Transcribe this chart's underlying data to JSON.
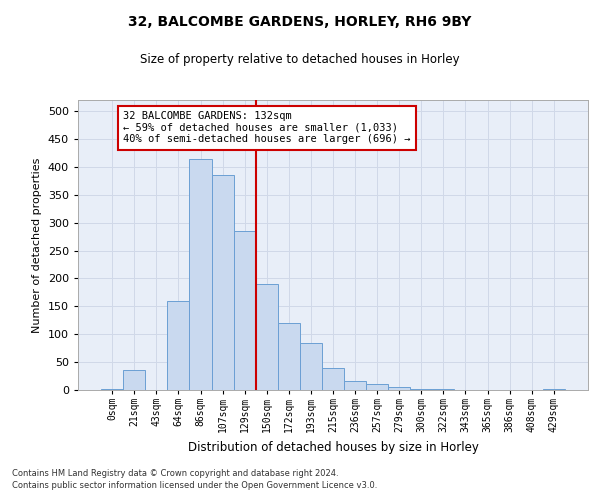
{
  "title1": "32, BALCOMBE GARDENS, HORLEY, RH6 9BY",
  "title2": "Size of property relative to detached houses in Horley",
  "xlabel": "Distribution of detached houses by size in Horley",
  "ylabel": "Number of detached properties",
  "bin_labels": [
    "0sqm",
    "21sqm",
    "43sqm",
    "64sqm",
    "86sqm",
    "107sqm",
    "129sqm",
    "150sqm",
    "172sqm",
    "193sqm",
    "215sqm",
    "236sqm",
    "257sqm",
    "279sqm",
    "300sqm",
    "322sqm",
    "343sqm",
    "365sqm",
    "386sqm",
    "408sqm",
    "429sqm"
  ],
  "bar_values": [
    2,
    35,
    0,
    160,
    415,
    385,
    285,
    190,
    120,
    85,
    40,
    17,
    10,
    5,
    1,
    1,
    0,
    0,
    0,
    0,
    2
  ],
  "bar_color": "#c9d9ef",
  "bar_edge_color": "#6b9fd4",
  "property_bin_index": 6,
  "vline_color": "#cc0000",
  "annotation_text": "32 BALCOMBE GARDENS: 132sqm\n← 59% of detached houses are smaller (1,033)\n40% of semi-detached houses are larger (696) →",
  "annotation_box_color": "#ffffff",
  "annotation_box_edge_color": "#cc0000",
  "ylim": [
    0,
    520
  ],
  "yticks": [
    0,
    50,
    100,
    150,
    200,
    250,
    300,
    350,
    400,
    450,
    500
  ],
  "grid_color": "#d0d8e8",
  "bg_color": "#e8eef8",
  "footer1": "Contains HM Land Registry data © Crown copyright and database right 2024.",
  "footer2": "Contains public sector information licensed under the Open Government Licence v3.0."
}
